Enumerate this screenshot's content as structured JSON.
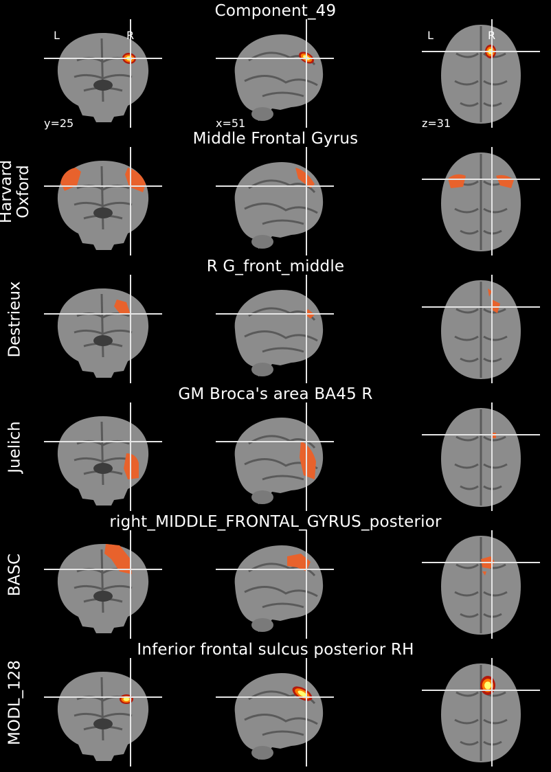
{
  "figure": {
    "rows": [
      {
        "title": "Component_49",
        "atlas": "",
        "overlay": "hot",
        "show_orientation": true,
        "orientation": {
          "left": "L",
          "right": "R"
        },
        "coords": [
          "y=25",
          "x=51",
          "z=31"
        ]
      },
      {
        "title": "Middle Frontal Gyrus",
        "atlas": "Harvard\nOxford",
        "overlay": "orange",
        "variant": 1
      },
      {
        "title": "R G_front_middle",
        "atlas": "Destrieux",
        "overlay": "orange",
        "variant": 2
      },
      {
        "title": "GM Broca's area BA45 R",
        "atlas": "Juelich",
        "overlay": "orange",
        "variant": 3
      },
      {
        "title": "right_MIDDLE_FRONTAL_GYRUS_posterior",
        "atlas": "BASC",
        "overlay": "orange",
        "variant": 4
      },
      {
        "title": "Inferior frontal sulcus posterior RH",
        "atlas": "MODL_128",
        "overlay": "hot",
        "variant": 5
      }
    ],
    "colors": {
      "background": "#000000",
      "brain": "#8c8c8c",
      "crosshair": "#e6e6e6",
      "overlay_orange": "#e8622c",
      "hot_outer": "#b41a0c",
      "hot_mid": "#ff7a00",
      "hot_core": "#ffff6e"
    }
  }
}
